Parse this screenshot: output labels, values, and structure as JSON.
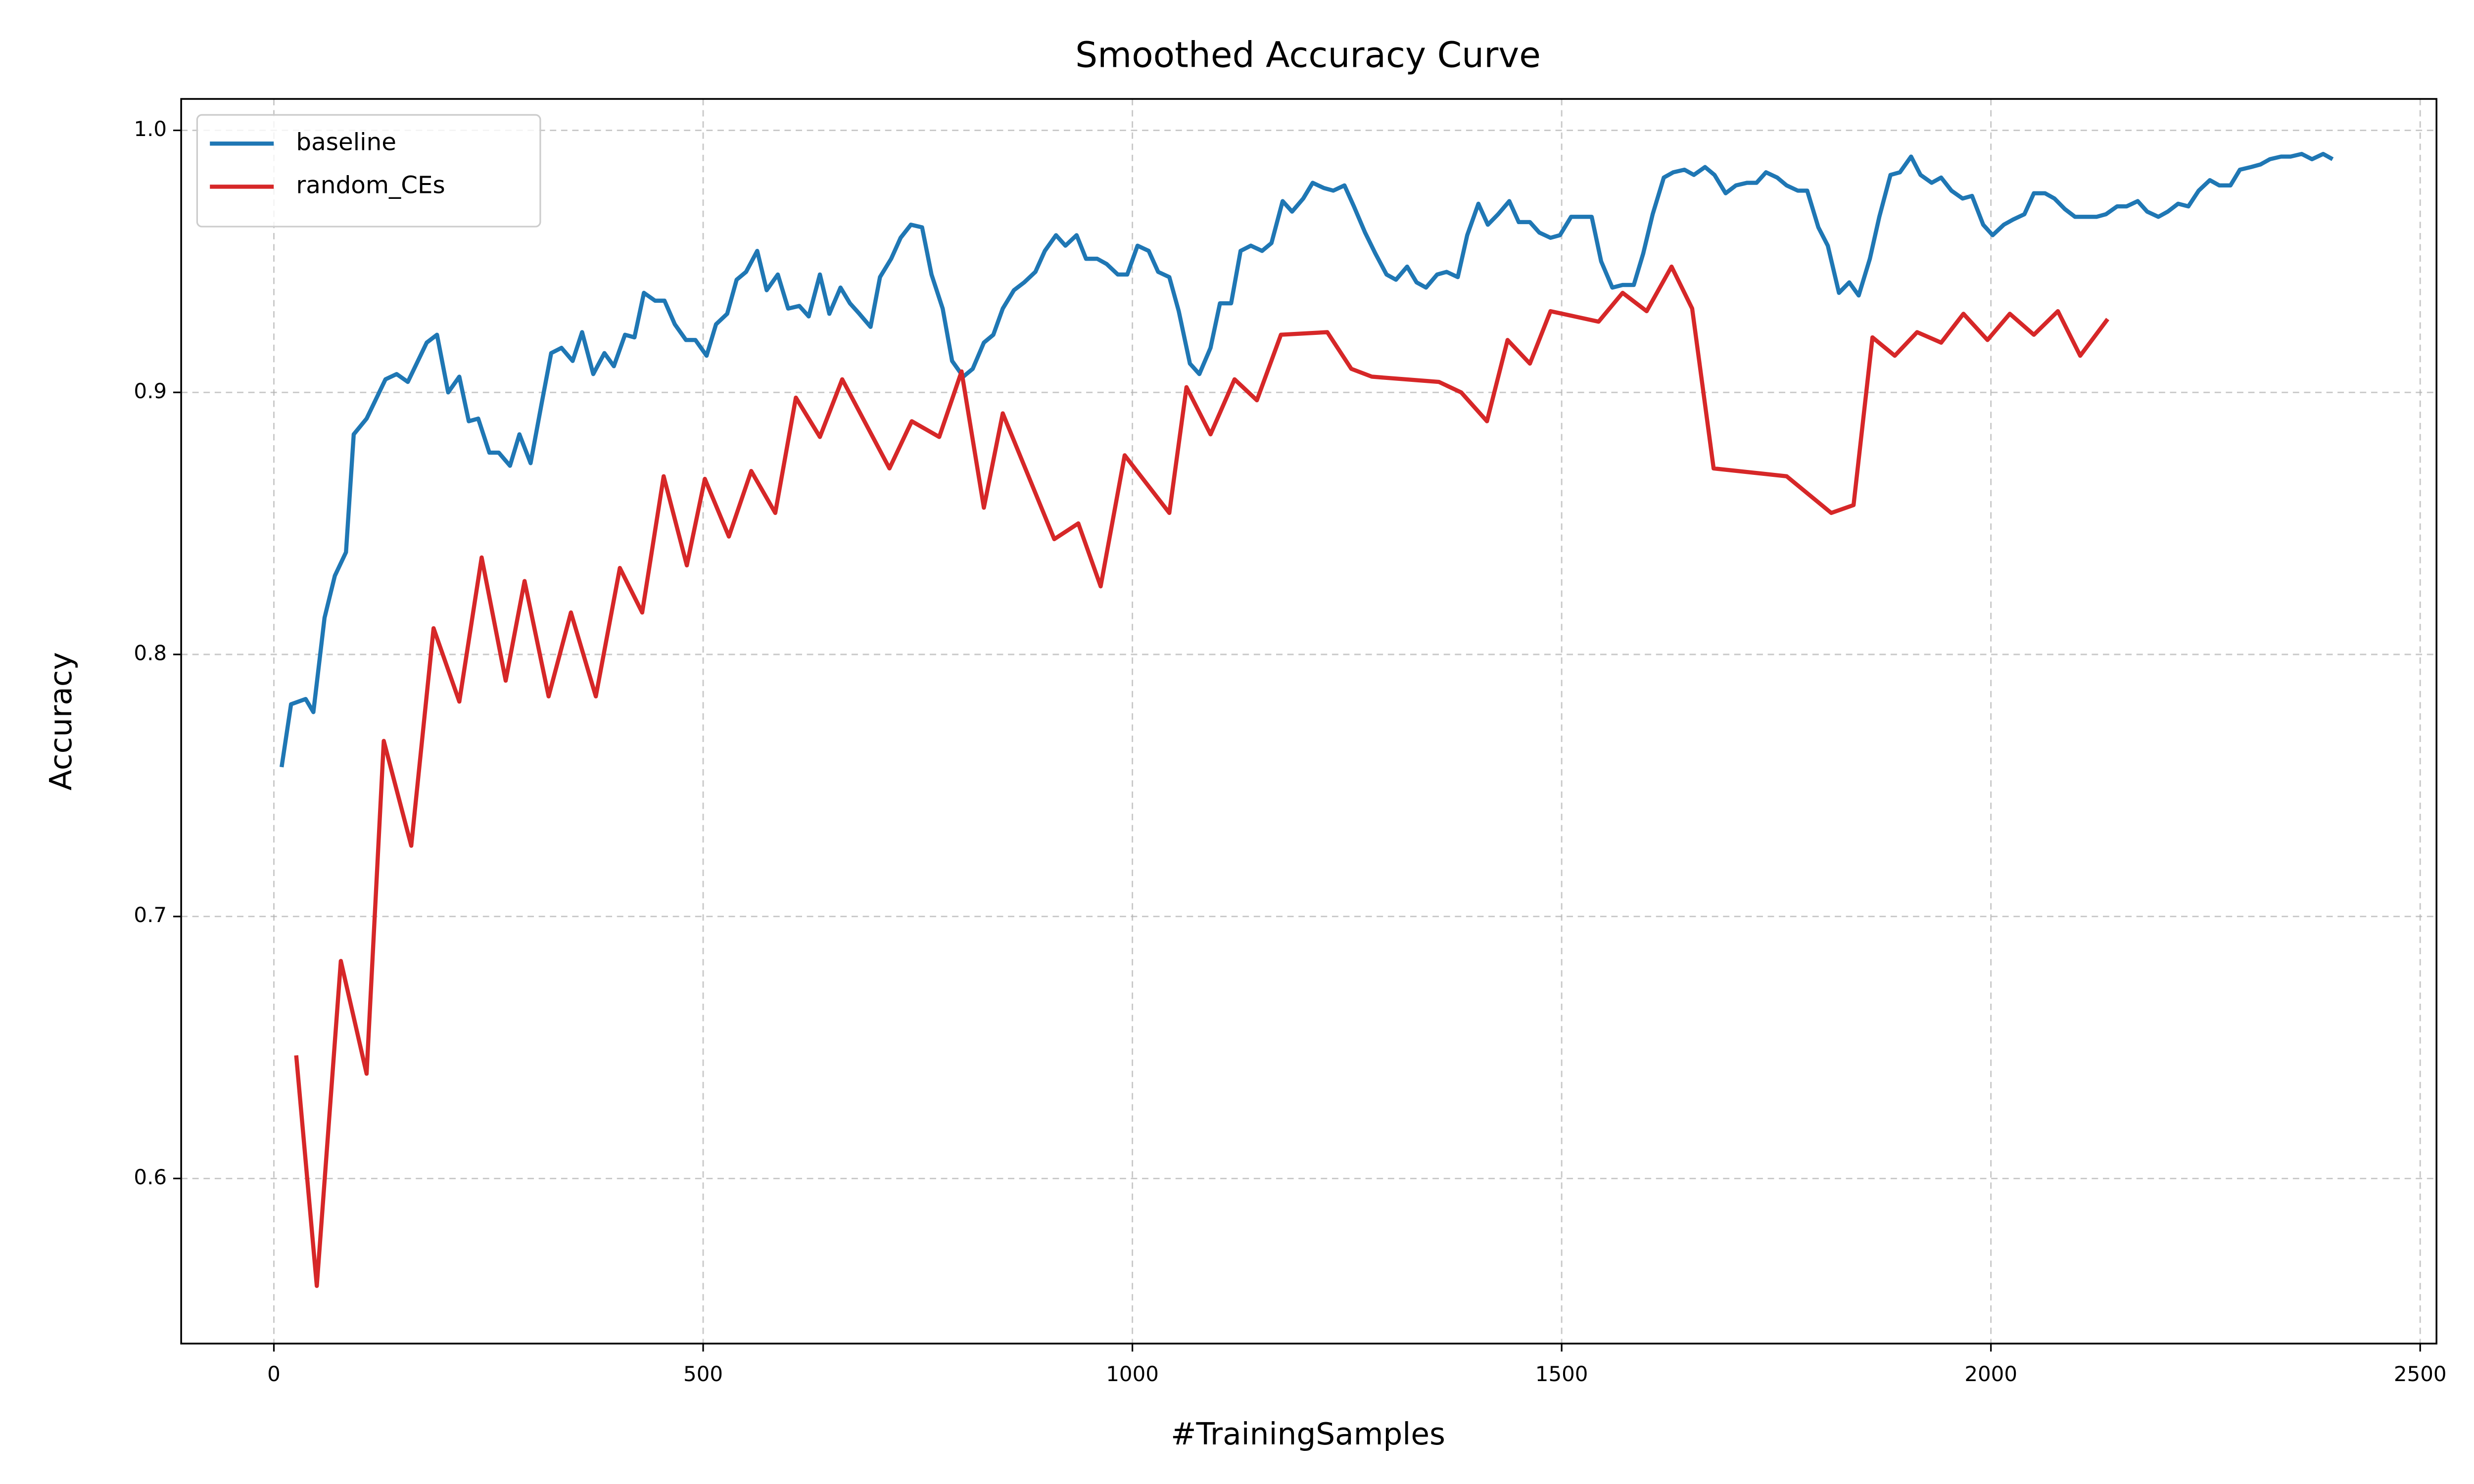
{
  "chart_data": {
    "type": "line",
    "title": "Smoothed Accuracy Curve",
    "x_label": "#TrainingSamples",
    "y_label": "Accuracy",
    "xlim": [
      -108,
      2519
    ],
    "ylim": [
      0.537,
      1.012
    ],
    "xticks": [
      0,
      500,
      1000,
      1500,
      2000,
      2500
    ],
    "yticks": [
      0.6,
      0.7,
      0.8,
      0.9,
      {
        "value": 1.0,
        "label": "1.0"
      }
    ],
    "grid": true,
    "legend": "upper left",
    "series": [
      {
        "name": "baseline",
        "color": "#1f77b4",
        "x": [
          9,
          20,
          37,
          46,
          59,
          71,
          84,
          93,
          108,
          130,
          143,
          156,
          178,
          190,
          203,
          216,
          227,
          238,
          251,
          262,
          275,
          286,
          299,
          312,
          323,
          335,
          348,
          359,
          372,
          385,
          396,
          409,
          420,
          431,
          444,
          455,
          467,
          480,
          491,
          504,
          515,
          528,
          539,
          550,
          563,
          574,
          587,
          599,
          612,
          623,
          636,
          647,
          660,
          671,
          682,
          695,
          706,
          719,
          730,
          742,
          755,
          766,
          779,
          790,
          803,
          814,
          827,
          838,
          849,
          862,
          874,
          887,
          898,
          911,
          922,
          935,
          946,
          959,
          970,
          983,
          994,
          1006,
          1019,
          1030,
          1043,
          1054,
          1067,
          1078,
          1091,
          1102,
          1115,
          1126,
          1138,
          1151,
          1162,
          1175,
          1186,
          1199,
          1210,
          1223,
          1234,
          1247,
          1258,
          1271,
          1283,
          1296,
          1307,
          1320,
          1331,
          1342,
          1355,
          1366,
          1379,
          1390,
          1403,
          1414,
          1426,
          1439,
          1450,
          1463,
          1474,
          1487,
          1498,
          1511,
          1522,
          1535,
          1546,
          1559,
          1571,
          1584,
          1595,
          1606,
          1619,
          1630,
          1643,
          1654,
          1667,
          1678,
          1691,
          1703,
          1716,
          1727,
          1738,
          1751,
          1762,
          1775,
          1786,
          1799,
          1810,
          1823,
          1835,
          1846,
          1859,
          1870,
          1883,
          1894,
          1907,
          1918,
          1931,
          1942,
          1954,
          1967,
          1978,
          1991,
          2002,
          2015,
          2026,
          2039,
          2050,
          2063,
          2074,
          2086,
          2098,
          2110,
          2123,
          2134,
          2147,
          2158,
          2171,
          2182,
          2195,
          2206,
          2218,
          2230,
          2242,
          2255,
          2266,
          2279,
          2290,
          2303,
          2314,
          2325,
          2338,
          2349,
          2362,
          2374,
          2387,
          2398
        ],
        "values": [
          0.757,
          0.781,
          0.783,
          0.778,
          0.814,
          0.83,
          0.839,
          0.884,
          0.89,
          0.905,
          0.907,
          0.904,
          0.919,
          0.922,
          0.9,
          0.906,
          0.889,
          0.89,
          0.877,
          0.877,
          0.872,
          0.884,
          0.873,
          0.896,
          0.915,
          0.917,
          0.912,
          0.923,
          0.907,
          0.915,
          0.91,
          0.922,
          0.921,
          0.938,
          0.935,
          0.935,
          0.926,
          0.92,
          0.92,
          0.914,
          0.926,
          0.93,
          0.943,
          0.946,
          0.954,
          0.939,
          0.945,
          0.932,
          0.933,
          0.929,
          0.945,
          0.93,
          0.94,
          0.934,
          0.93,
          0.925,
          0.944,
          0.951,
          0.959,
          0.964,
          0.963,
          0.945,
          0.932,
          0.912,
          0.906,
          0.909,
          0.919,
          0.922,
          0.932,
          0.939,
          0.942,
          0.946,
          0.954,
          0.96,
          0.956,
          0.96,
          0.951,
          0.951,
          0.949,
          0.945,
          0.945,
          0.956,
          0.954,
          0.946,
          0.944,
          0.931,
          0.911,
          0.907,
          0.917,
          0.934,
          0.934,
          0.954,
          0.956,
          0.954,
          0.957,
          0.973,
          0.969,
          0.974,
          0.98,
          0.978,
          0.977,
          0.979,
          0.971,
          0.961,
          0.953,
          0.945,
          0.943,
          0.948,
          0.942,
          0.94,
          0.945,
          0.946,
          0.944,
          0.96,
          0.972,
          0.964,
          0.968,
          0.973,
          0.965,
          0.965,
          0.961,
          0.959,
          0.96,
          0.967,
          0.967,
          0.967,
          0.95,
          0.94,
          0.941,
          0.941,
          0.953,
          0.968,
          0.982,
          0.984,
          0.985,
          0.983,
          0.986,
          0.983,
          0.976,
          0.979,
          0.98,
          0.98,
          0.984,
          0.982,
          0.979,
          0.977,
          0.977,
          0.963,
          0.956,
          0.938,
          0.942,
          0.937,
          0.951,
          0.967,
          0.983,
          0.984,
          0.99,
          0.983,
          0.98,
          0.982,
          0.977,
          0.974,
          0.975,
          0.964,
          0.96,
          0.964,
          0.966,
          0.968,
          0.976,
          0.976,
          0.974,
          0.97,
          0.967,
          0.967,
          0.967,
          0.968,
          0.971,
          0.971,
          0.973,
          0.969,
          0.967,
          0.969,
          0.972,
          0.971,
          0.977,
          0.981,
          0.979,
          0.979,
          0.985,
          0.986,
          0.987,
          0.989,
          0.99,
          0.99,
          0.991,
          0.989,
          0.991,
          0.989
        ]
      },
      {
        "name": "random_CEs",
        "color": "#d62728",
        "x": [
          26,
          50,
          78,
          108,
          128,
          160,
          186,
          216,
          242,
          270,
          292,
          320,
          346,
          375,
          403,
          429,
          454,
          481,
          502,
          530,
          556,
          584,
          608,
          636,
          662,
          717,
          743,
          775,
          801,
          827,
          849,
          909,
          937,
          963,
          991,
          1043,
          1063,
          1091,
          1119,
          1145,
          1173,
          1227,
          1255,
          1279,
          1357,
          1383,
          1413,
          1437,
          1463,
          1487,
          1543,
          1571,
          1599,
          1628,
          1652,
          1677,
          1762,
          1814,
          1840,
          1862,
          1888,
          1914,
          1942,
          1968,
          1996,
          2022,
          2050,
          2078,
          2104,
          2136
        ],
        "values": [
          0.647,
          0.559,
          0.683,
          0.64,
          0.767,
          0.727,
          0.81,
          0.782,
          0.837,
          0.79,
          0.828,
          0.784,
          0.816,
          0.784,
          0.833,
          0.816,
          0.868,
          0.834,
          0.867,
          0.845,
          0.87,
          0.854,
          0.898,
          0.883,
          0.905,
          0.871,
          0.889,
          0.883,
          0.908,
          0.856,
          0.892,
          0.844,
          0.85,
          0.826,
          0.876,
          0.854,
          0.902,
          0.884,
          0.905,
          0.897,
          0.922,
          0.923,
          0.909,
          0.906,
          0.904,
          0.9,
          0.889,
          0.92,
          0.911,
          0.931,
          0.927,
          0.938,
          0.931,
          0.948,
          0.932,
          0.871,
          0.868,
          0.854,
          0.857,
          0.921,
          0.914,
          0.923,
          0.919,
          0.93,
          0.92,
          0.93,
          0.922,
          0.931,
          0.914,
          0.928
        ]
      }
    ]
  }
}
